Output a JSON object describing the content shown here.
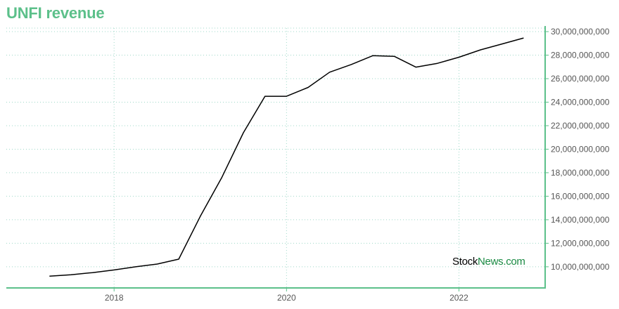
{
  "title": "UNFI revenue",
  "watermark": {
    "part1": "Stock",
    "part2": "News.com"
  },
  "colors": {
    "accent": "#5cc08a",
    "grid": "#9fd8c8",
    "line": "#000000",
    "axis_text": "#555555",
    "watermark_green": "#1a8a43"
  },
  "chart_data": {
    "type": "line",
    "title": "UNFI revenue",
    "xlabel": "",
    "ylabel": "",
    "x_ticks": [
      "2018",
      "2020",
      "2022"
    ],
    "y_ticks": [
      10000000000,
      12000000000,
      14000000000,
      16000000000,
      18000000000,
      20000000000,
      22000000000,
      24000000000,
      26000000000,
      28000000000,
      30000000000
    ],
    "y_tick_labels": [
      "10,000,000,000",
      "12,000,000,000",
      "14,000,000,000",
      "16,000,000,000",
      "18,000,000,000",
      "20,000,000,000",
      "22,000,000,000",
      "24,000,000,000",
      "26,000,000,000",
      "28,000,000,000",
      "30,000,000,000"
    ],
    "xlim": [
      2016.75,
      2023.0
    ],
    "ylim": [
      8200000000,
      30300000000
    ],
    "grid": true,
    "y_axis_side": "right",
    "series": [
      {
        "x": [
          2017.25,
          2017.5,
          2017.75,
          2018.0,
          2018.25,
          2018.5,
          2018.75,
          2019.0,
          2019.25,
          2019.5,
          2019.75,
          2020.0,
          2020.25,
          2020.5,
          2020.75,
          2021.0,
          2021.25,
          2021.5,
          2021.75,
          2022.0,
          2022.25,
          2022.5,
          2022.75
        ],
        "y": [
          9200000000,
          9320000000,
          9500000000,
          9730000000,
          10000000000,
          10230000000,
          10650000000,
          14300000000,
          17600000000,
          21400000000,
          24500000000,
          24500000000,
          25250000000,
          26550000000,
          27200000000,
          27950000000,
          27900000000,
          26980000000,
          27300000000,
          27820000000,
          28450000000,
          28950000000,
          29460000000
        ]
      }
    ]
  }
}
